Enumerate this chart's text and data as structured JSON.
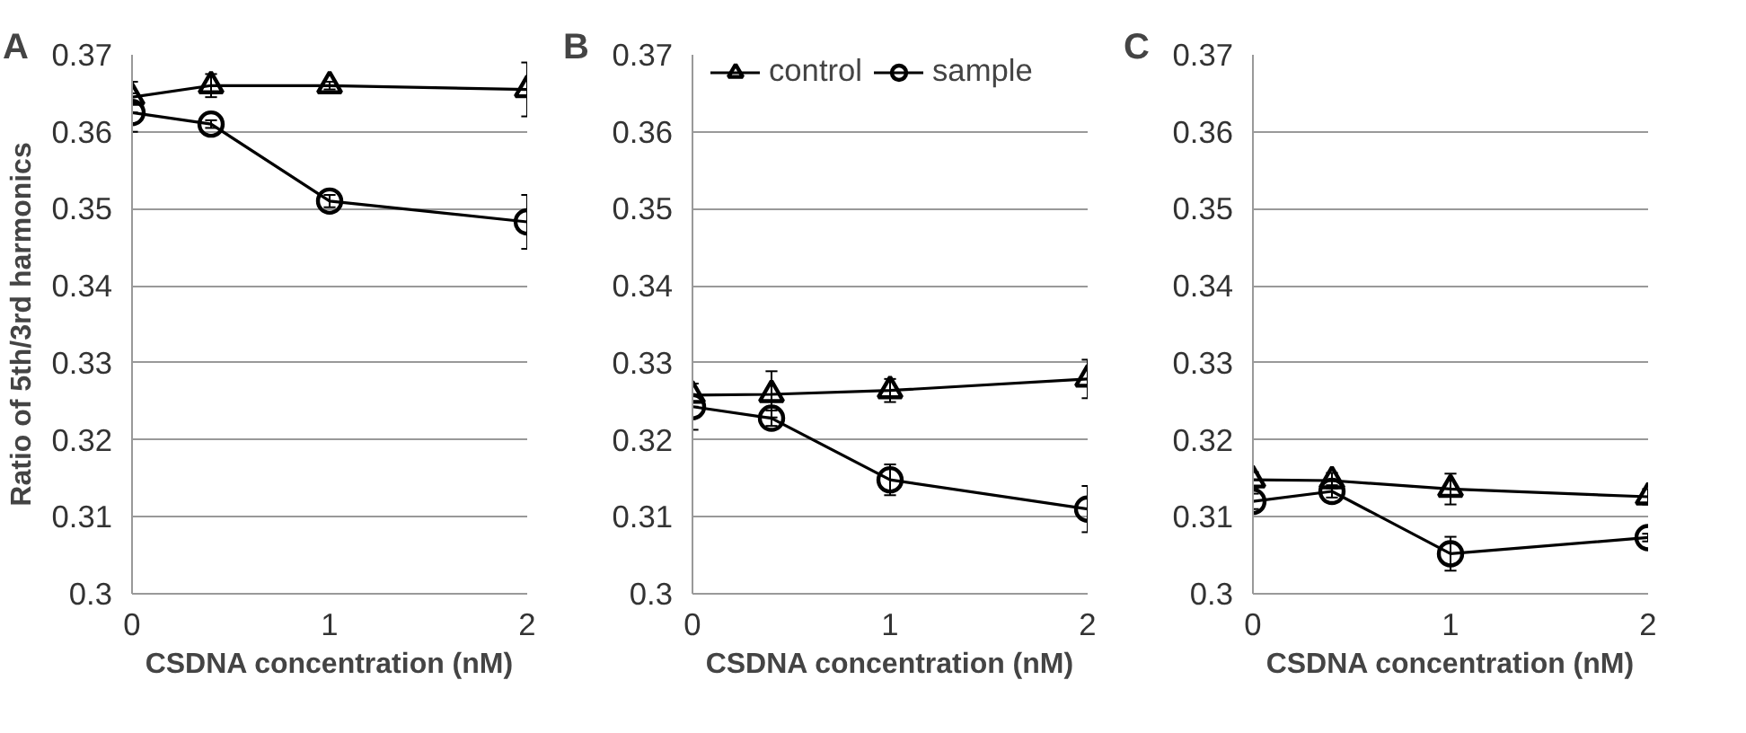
{
  "chart_data": [
    {
      "type": "line",
      "title": "A",
      "xlabel": "CSDNA concentration (nM)",
      "ylabel": "Ratio of 5th/3rd harmonics",
      "x": [
        0,
        0.4,
        1,
        2
      ],
      "xlim": [
        0,
        2
      ],
      "xticks": [
        0,
        1,
        2
      ],
      "ylim": [
        0.3,
        0.37
      ],
      "yticks": [
        0.3,
        0.31,
        0.32,
        0.33,
        0.34,
        0.35,
        0.36,
        0.37
      ],
      "grid": "y",
      "legend": false,
      "line_style": "solid",
      "series": [
        {
          "color": "#000000",
          "marker": "triangle",
          "values": [
            0.3645,
            0.366,
            0.366,
            0.3655
          ],
          "errors": [
            0.002,
            0.0015,
            0.0005,
            0.0035
          ]
        },
        {
          "color": "#000000",
          "marker": "circle",
          "values": [
            0.3625,
            0.361,
            0.351,
            0.3483
          ],
          "errors": [
            0.0025,
            0.0005,
            0.0008,
            0.0035
          ]
        }
      ]
    },
    {
      "type": "line",
      "title": "B",
      "xlabel": "CSDNA concentration (nM)",
      "x": [
        0,
        0.4,
        1,
        2
      ],
      "xlim": [
        0,
        2
      ],
      "xticks": [
        0,
        1,
        2
      ],
      "ylim": [
        0.3,
        0.37
      ],
      "yticks": [
        0.3,
        0.31,
        0.32,
        0.33,
        0.34,
        0.35,
        0.36,
        0.37
      ],
      "grid": "y",
      "legend": "top",
      "line_style": "solid",
      "series": [
        {
          "name": "control",
          "color": "#000000",
          "marker": "triangle",
          "values": [
            0.3258,
            0.3259,
            0.3264,
            0.3279
          ],
          "errors": [
            0.0015,
            0.003,
            0.0015,
            0.0025
          ]
        },
        {
          "name": "sample",
          "color": "#000000",
          "marker": "circle",
          "values": [
            0.3243,
            0.3228,
            0.3148,
            0.311
          ],
          "errors": [
            0.003,
            0.001,
            0.002,
            0.003
          ]
        }
      ]
    },
    {
      "type": "line",
      "title": "C",
      "xlabel": "CSDNA concentration (nM)",
      "x": [
        0,
        0.4,
        1,
        2
      ],
      "xlim": [
        0,
        2
      ],
      "xticks": [
        0,
        1,
        2
      ],
      "ylim": [
        0.3,
        0.37
      ],
      "yticks": [
        0.3,
        0.31,
        0.32,
        0.33,
        0.34,
        0.35,
        0.36,
        0.37
      ],
      "grid": "y",
      "legend": false,
      "line_style": "solid",
      "series": [
        {
          "color": "#000000",
          "marker": "triangle",
          "values": [
            0.3148,
            0.3147,
            0.3136,
            0.3126
          ],
          "errors": [
            0.001,
            0.001,
            0.002,
            0.001
          ]
        },
        {
          "color": "#000000",
          "marker": "circle",
          "values": [
            0.312,
            0.3133,
            0.3052,
            0.3073
          ],
          "errors": [
            0.001,
            0.0008,
            0.0022,
            0.0005
          ]
        }
      ]
    }
  ]
}
